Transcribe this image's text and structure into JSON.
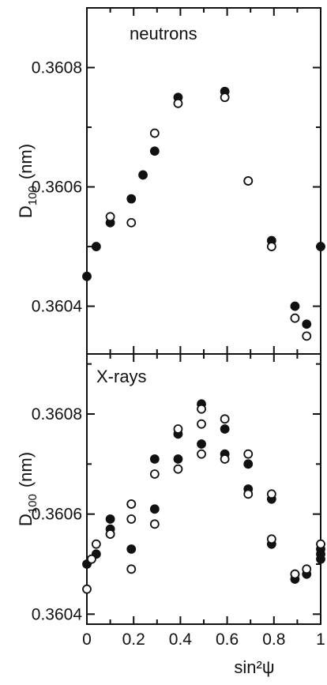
{
  "chart_data": [
    {
      "type": "scatter",
      "title": "neutrons",
      "ylabel": "D",
      "ylabel_sub": "100",
      "ylabel_unit": "(nm)",
      "xlim": [
        0,
        1
      ],
      "ylim": [
        0.36032,
        0.3609
      ],
      "y_ticks": [
        0.3604,
        0.3606,
        0.3608
      ],
      "y_tick_labels": [
        "0.3604",
        "0.3606",
        "0.3608"
      ],
      "series": [
        {
          "style": "filled",
          "x": [
            0.0,
            0.04,
            0.1,
            0.19,
            0.24,
            0.29,
            0.39,
            0.59,
            0.69,
            0.79,
            0.89,
            0.94,
            1.0
          ],
          "y": [
            0.36045,
            0.3605,
            0.36054,
            0.36058,
            0.36062,
            0.36066,
            0.36075,
            0.36076,
            0.36061,
            0.36051,
            0.3604,
            0.36037,
            0.3605
          ]
        },
        {
          "style": "open",
          "x": [
            0.1,
            0.19,
            0.29,
            0.39,
            0.59,
            0.69,
            0.79,
            0.89,
            0.94
          ],
          "y": [
            0.36055,
            0.36054,
            0.36069,
            0.36074,
            0.36075,
            0.36061,
            0.3605,
            0.36038,
            0.36035
          ]
        }
      ]
    },
    {
      "type": "scatter",
      "title": "X-rays",
      "xlabel": "sin²ψ",
      "ylabel": "D",
      "ylabel_sub": "100",
      "ylabel_unit": "(nm)",
      "xlim": [
        0,
        1
      ],
      "ylim": [
        0.36038,
        0.36092
      ],
      "x_ticks": [
        0,
        0.2,
        0.4,
        0.6,
        0.8,
        1
      ],
      "x_tick_labels": [
        "0",
        "0.2",
        "0.4",
        "0.6",
        "0.8",
        "1"
      ],
      "y_ticks": [
        0.3604,
        0.3606,
        0.3608
      ],
      "y_tick_labels": [
        "0.3604",
        "0.3606",
        "0.3608"
      ],
      "series": [
        {
          "style": "filled",
          "x": [
            0.0,
            0.04,
            0.1,
            0.1,
            0.19,
            0.19,
            0.29,
            0.29,
            0.39,
            0.39,
            0.49,
            0.49,
            0.59,
            0.59,
            0.69,
            0.69,
            0.79,
            0.79,
            0.89,
            0.89,
            0.94,
            1.0,
            1.0,
            1.0
          ],
          "y": [
            0.3605,
            0.36052,
            0.36059,
            0.36057,
            0.36062,
            0.36053,
            0.36071,
            0.36061,
            0.36076,
            0.36071,
            0.36082,
            0.36074,
            0.36077,
            0.36072,
            0.3607,
            0.36065,
            0.36063,
            0.36054,
            0.36047,
            0.36048,
            0.36048,
            0.36051,
            0.36052,
            0.36053
          ]
        },
        {
          "style": "open",
          "x": [
            0.0,
            0.02,
            0.04,
            0.1,
            0.1,
            0.19,
            0.19,
            0.19,
            0.29,
            0.29,
            0.39,
            0.39,
            0.49,
            0.49,
            0.49,
            0.59,
            0.59,
            0.69,
            0.69,
            0.79,
            0.79,
            0.89,
            0.94,
            1.0
          ],
          "y": [
            0.36045,
            0.36051,
            0.36054,
            0.36056,
            0.36056,
            0.36062,
            0.36059,
            0.36049,
            0.36068,
            0.36058,
            0.36077,
            0.36069,
            0.36081,
            0.36078,
            0.36072,
            0.36079,
            0.36071,
            0.36072,
            0.36064,
            0.36064,
            0.36055,
            0.36048,
            0.36049,
            0.36054
          ]
        }
      ]
    }
  ]
}
